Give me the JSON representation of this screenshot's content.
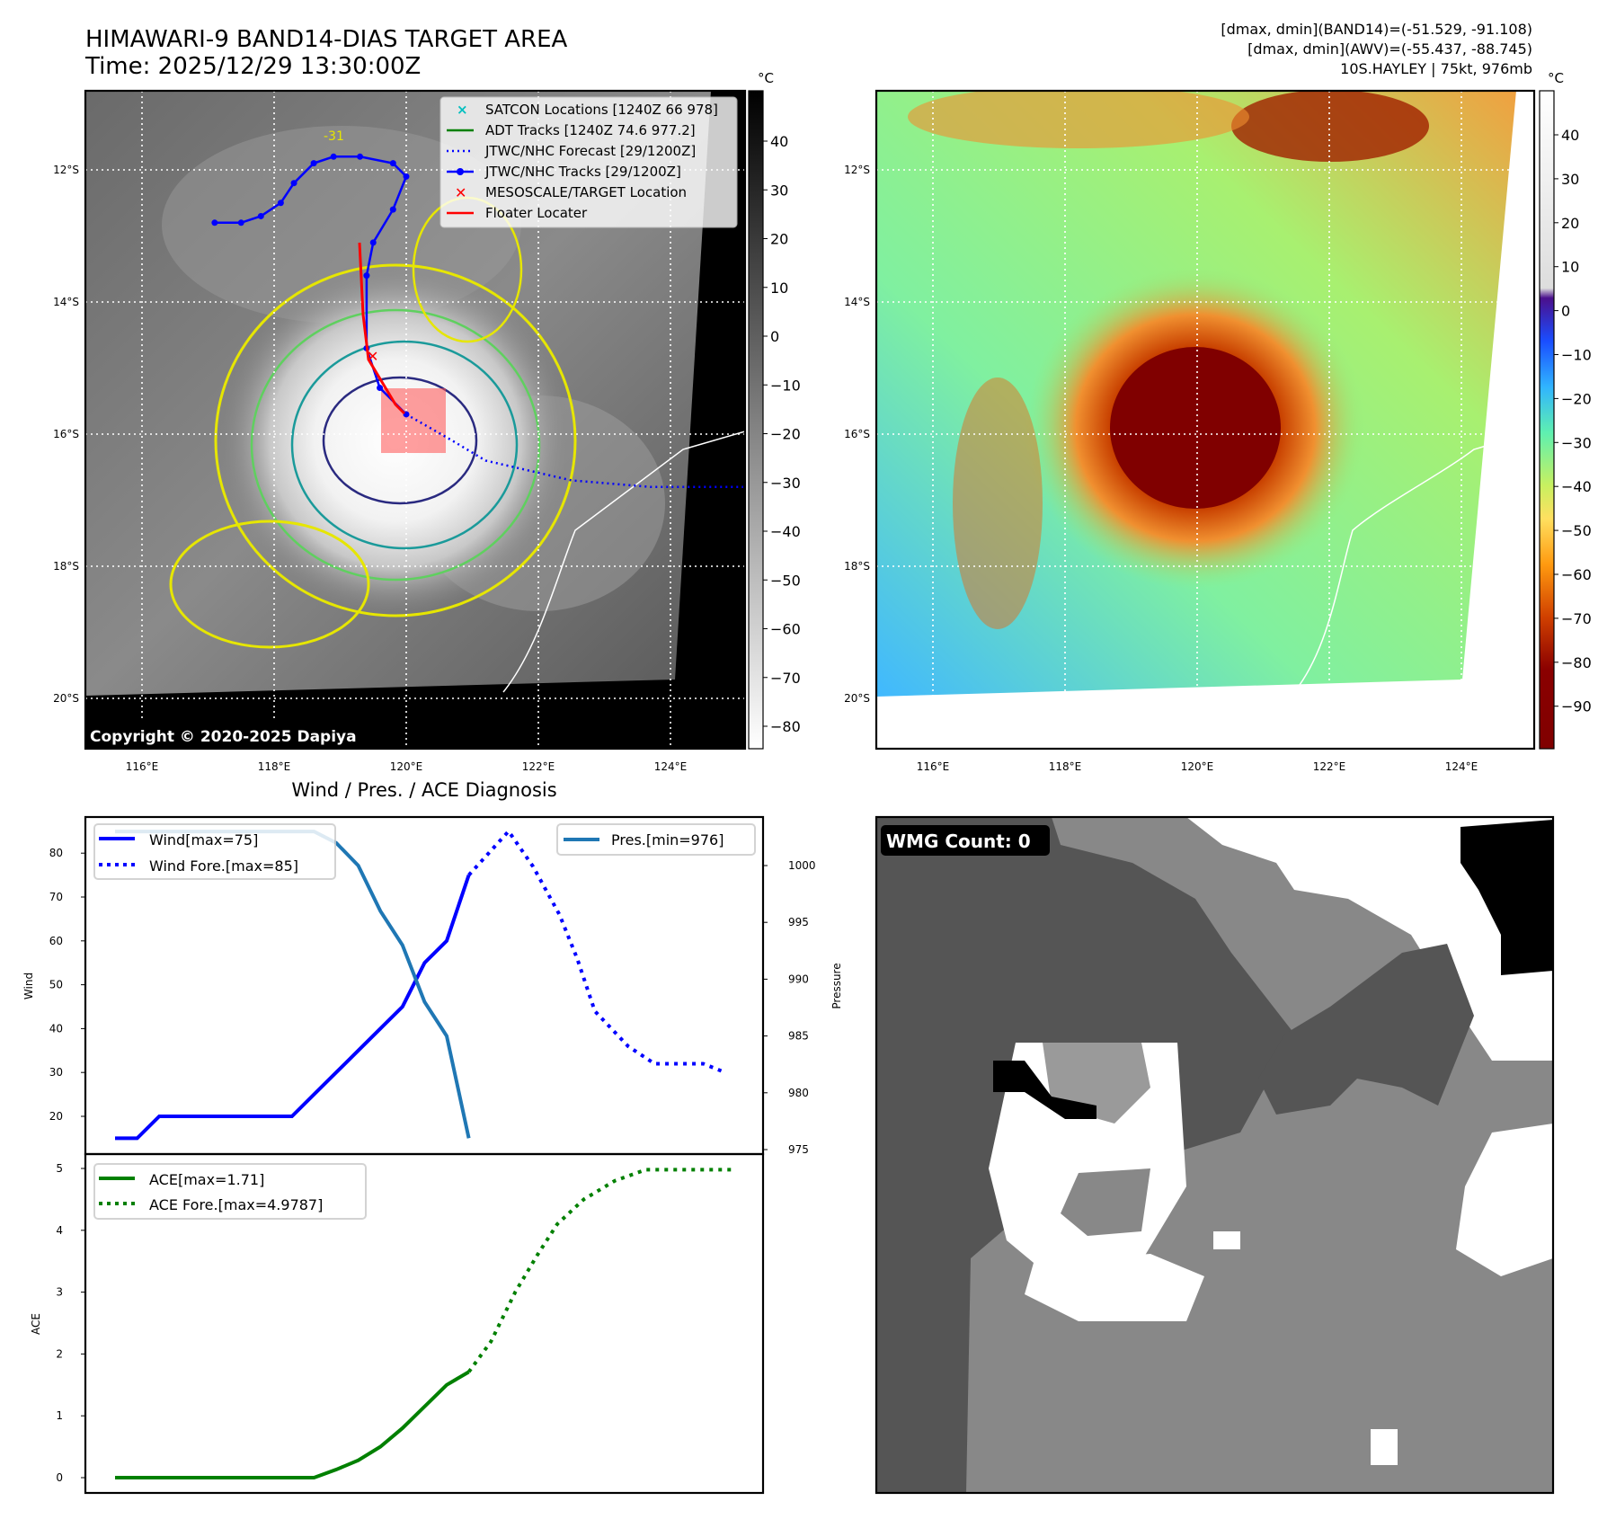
{
  "header": {
    "title_line1": "HIMAWARI-9 BAND14-DIAS TARGET AREA",
    "title_line2": "Time: 2025/12/29 13:30:00Z",
    "info_line1": "[dmax, dmin](BAND14)=(-51.529, -91.108)",
    "info_line2": "[dmax, dmin](AWV)=(-55.437, -88.745)",
    "info_line3": "10S.HAYLEY | 75kt, 976mb"
  },
  "map": {
    "lat_labels": [
      "12°S",
      "14°S",
      "16°S",
      "18°S",
      "20°S"
    ],
    "lon_labels": [
      "116°E",
      "118°E",
      "120°E",
      "122°E",
      "124°E"
    ],
    "copyright": "Copyright © 2020-2025 Dapiya",
    "contour_label": "-31",
    "legend": [
      {
        "label": "SATCON Locations [1240Z 66 978]",
        "color": "#00bfbf"
      },
      {
        "label": "ADT Tracks [1240Z 74.6 977.2]",
        "color": "#008000"
      },
      {
        "label": "JTWC/NHC Forecast [29/1200Z]",
        "color": "#0000ff"
      },
      {
        "label": "JTWC/NHC Tracks [29/1200Z]",
        "color": "#0000ff"
      },
      {
        "label": "MESOSCALE/TARGET Location",
        "color": "#ff0000"
      },
      {
        "label": "Floater Locater",
        "color": "#ff0000"
      }
    ],
    "track": [
      [
        117.1,
        12.8
      ],
      [
        117.5,
        12.8
      ],
      [
        117.8,
        12.7
      ],
      [
        118.1,
        12.5
      ],
      [
        118.3,
        12.2
      ],
      [
        118.6,
        11.9
      ],
      [
        118.9,
        11.8
      ],
      [
        119.3,
        11.8
      ],
      [
        119.8,
        11.9
      ],
      [
        120.0,
        12.1
      ],
      [
        119.8,
        12.6
      ],
      [
        119.5,
        13.1
      ],
      [
        119.4,
        13.6
      ],
      [
        119.4,
        14.7
      ],
      [
        119.6,
        15.3
      ],
      [
        120.0,
        15.7
      ]
    ],
    "forecast": [
      [
        120.0,
        15.7
      ],
      [
        120.7,
        16.1
      ],
      [
        121.2,
        16.4
      ],
      [
        122.5,
        16.7
      ],
      [
        123.7,
        16.8
      ],
      [
        125.1,
        16.8
      ]
    ],
    "colorbar1": {
      "unit": "°C",
      "ticks": [
        "40",
        "30",
        "20",
        "10",
        "0",
        "−10",
        "−20",
        "−30",
        "−40",
        "−50",
        "−60",
        "−70",
        "−80"
      ]
    },
    "colorbar2": {
      "unit": "°C",
      "ticks": [
        "40",
        "30",
        "20",
        "10",
        "0",
        "−10",
        "−20",
        "−30",
        "−40",
        "−50",
        "−60",
        "−70",
        "−80",
        "−90"
      ]
    }
  },
  "wmg": {
    "label": "WMG Count: 0"
  },
  "chart_data": [
    {
      "type": "line",
      "title": "Wind / Pres. / ACE Diagnosis",
      "ylabel": "Wind",
      "y2label": "Pressure",
      "ylim": [
        13,
        88
      ],
      "y2lim": [
        974.5,
        1004
      ],
      "yticks": [
        20,
        30,
        40,
        50,
        60,
        70,
        80
      ],
      "y2ticks": [
        975,
        980,
        985,
        990,
        995,
        1000
      ],
      "series": [
        {
          "name": "Wind[max=75]",
          "axis": "left",
          "color": "#0000ff",
          "style": "solid",
          "x": [
            0,
            1,
            2,
            3,
            4,
            5,
            6,
            7,
            8,
            9,
            10,
            11,
            12,
            13,
            14,
            15,
            16
          ],
          "values": [
            15,
            15,
            20,
            20,
            20,
            20,
            20,
            20,
            20,
            25,
            30,
            35,
            40,
            45,
            55,
            60,
            75
          ]
        },
        {
          "name": "Wind Fore.[max=85]",
          "axis": "left",
          "color": "#0000ff",
          "style": "dotted",
          "x": [
            16,
            17.8,
            18.9,
            20.1,
            20.9,
            21.7,
            23.2,
            24.4,
            26.6,
            27.6
          ],
          "values": [
            75,
            85,
            77,
            66,
            56,
            44,
            36,
            32,
            32,
            30
          ]
        },
        {
          "name": "Pres.[min=976]",
          "axis": "right",
          "color": "#1f77b4",
          "style": "solid",
          "x": [
            0,
            1,
            2,
            3,
            4,
            5,
            6,
            7,
            8,
            9,
            10,
            11,
            12,
            13,
            14,
            15,
            16
          ],
          "values": [
            1003,
            1003,
            1003,
            1003,
            1003,
            1003,
            1003,
            1003,
            1003,
            1003,
            1002,
            1000,
            996,
            993,
            988,
            985,
            976
          ]
        }
      ]
    },
    {
      "type": "line",
      "ylabel": "ACE",
      "ylim": [
        -0.1,
        5.2
      ],
      "yticks": [
        0,
        1,
        2,
        3,
        4,
        5
      ],
      "series": [
        {
          "name": "ACE[max=1.71]",
          "color": "#008000",
          "style": "solid",
          "x": [
            0,
            1,
            2,
            3,
            4,
            5,
            6,
            7,
            8,
            9,
            10,
            11,
            12,
            13,
            14,
            15,
            16
          ],
          "values": [
            0,
            0,
            0,
            0,
            0,
            0,
            0,
            0,
            0,
            0,
            0.13,
            0.28,
            0.5,
            0.8,
            1.15,
            1.5,
            1.71
          ]
        },
        {
          "name": "ACE Fore.[max=4.9787]",
          "color": "#008000",
          "style": "dotted",
          "x": [
            16,
            17,
            18.1,
            19.1,
            20,
            21.2,
            22.6,
            24,
            27.9
          ],
          "values": [
            1.71,
            2.2,
            3.0,
            3.6,
            4.1,
            4.5,
            4.8,
            4.98,
            4.98
          ]
        }
      ]
    }
  ]
}
